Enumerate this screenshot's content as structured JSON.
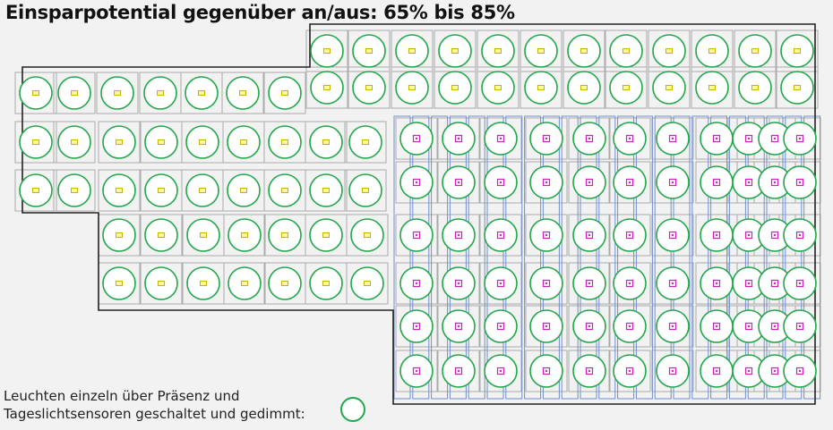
{
  "title": "Einsparpotential gegenüber an/aus: 65% bis 85%",
  "legend": {
    "line1": "Leuchten einzeln über Präsenz   und",
    "line2": "Tageslichtsensoren geschaltet und gedimmt:"
  },
  "colors": {
    "luminaire_ring": "#22a84a",
    "presence_sensor": "#c8b400",
    "daylight_sensor": "#d020c0",
    "panel_outline": "#6f8fcf",
    "wall": "#222222",
    "tile": "#ababab"
  }
}
